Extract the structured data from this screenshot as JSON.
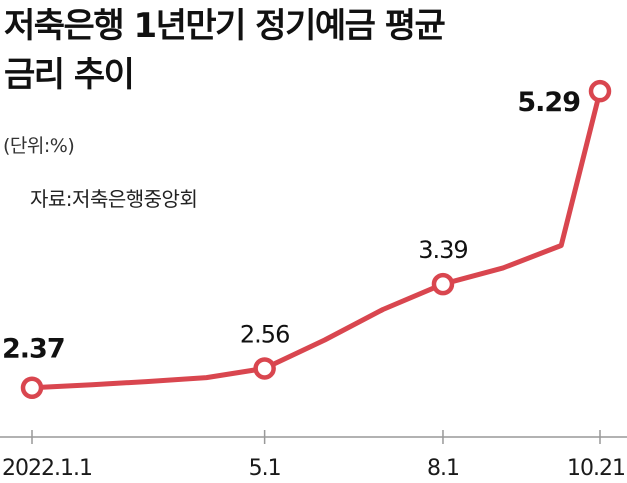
{
  "title_lines": [
    "저축은행 1년만기 정기예금 평균",
    "금리 추이"
  ],
  "unit_note": "(단위:%)",
  "source_note": "자료:저축은행중앙회",
  "colors": {
    "line": "#d9464f",
    "axis": "#999999",
    "text": "#1a1a1a"
  },
  "chart_data": {
    "type": "line",
    "title": "저축은행 1년만기 정기예금 평균 금리 추이",
    "xlabel": "",
    "ylabel": "",
    "unit": "%",
    "ylim": [
      2.2,
      5.4
    ],
    "grid": false,
    "x_tick_labels": [
      "2022.1.1",
      "5.1",
      "8.1",
      "10.21"
    ],
    "series": [
      {
        "values": [
          {
            "date": "2022-01-01",
            "value": 2.37,
            "label": "2.37",
            "marker": true,
            "bold": true
          },
          {
            "date": "2022-02-01",
            "value": 2.4
          },
          {
            "date": "2022-03-01",
            "value": 2.43
          },
          {
            "date": "2022-04-01",
            "value": 2.47
          },
          {
            "date": "2022-05-01",
            "value": 2.56,
            "label": "2.56",
            "marker": true
          },
          {
            "date": "2022-06-01",
            "value": 2.84
          },
          {
            "date": "2022-07-01",
            "value": 3.14
          },
          {
            "date": "2022-08-01",
            "value": 3.39,
            "label": "3.39",
            "marker": true
          },
          {
            "date": "2022-09-01",
            "value": 3.55
          },
          {
            "date": "2022-10-01",
            "value": 3.77
          },
          {
            "date": "2022-10-21",
            "value": 5.29,
            "label": "5.29",
            "marker": true,
            "bold": true
          }
        ]
      }
    ]
  }
}
